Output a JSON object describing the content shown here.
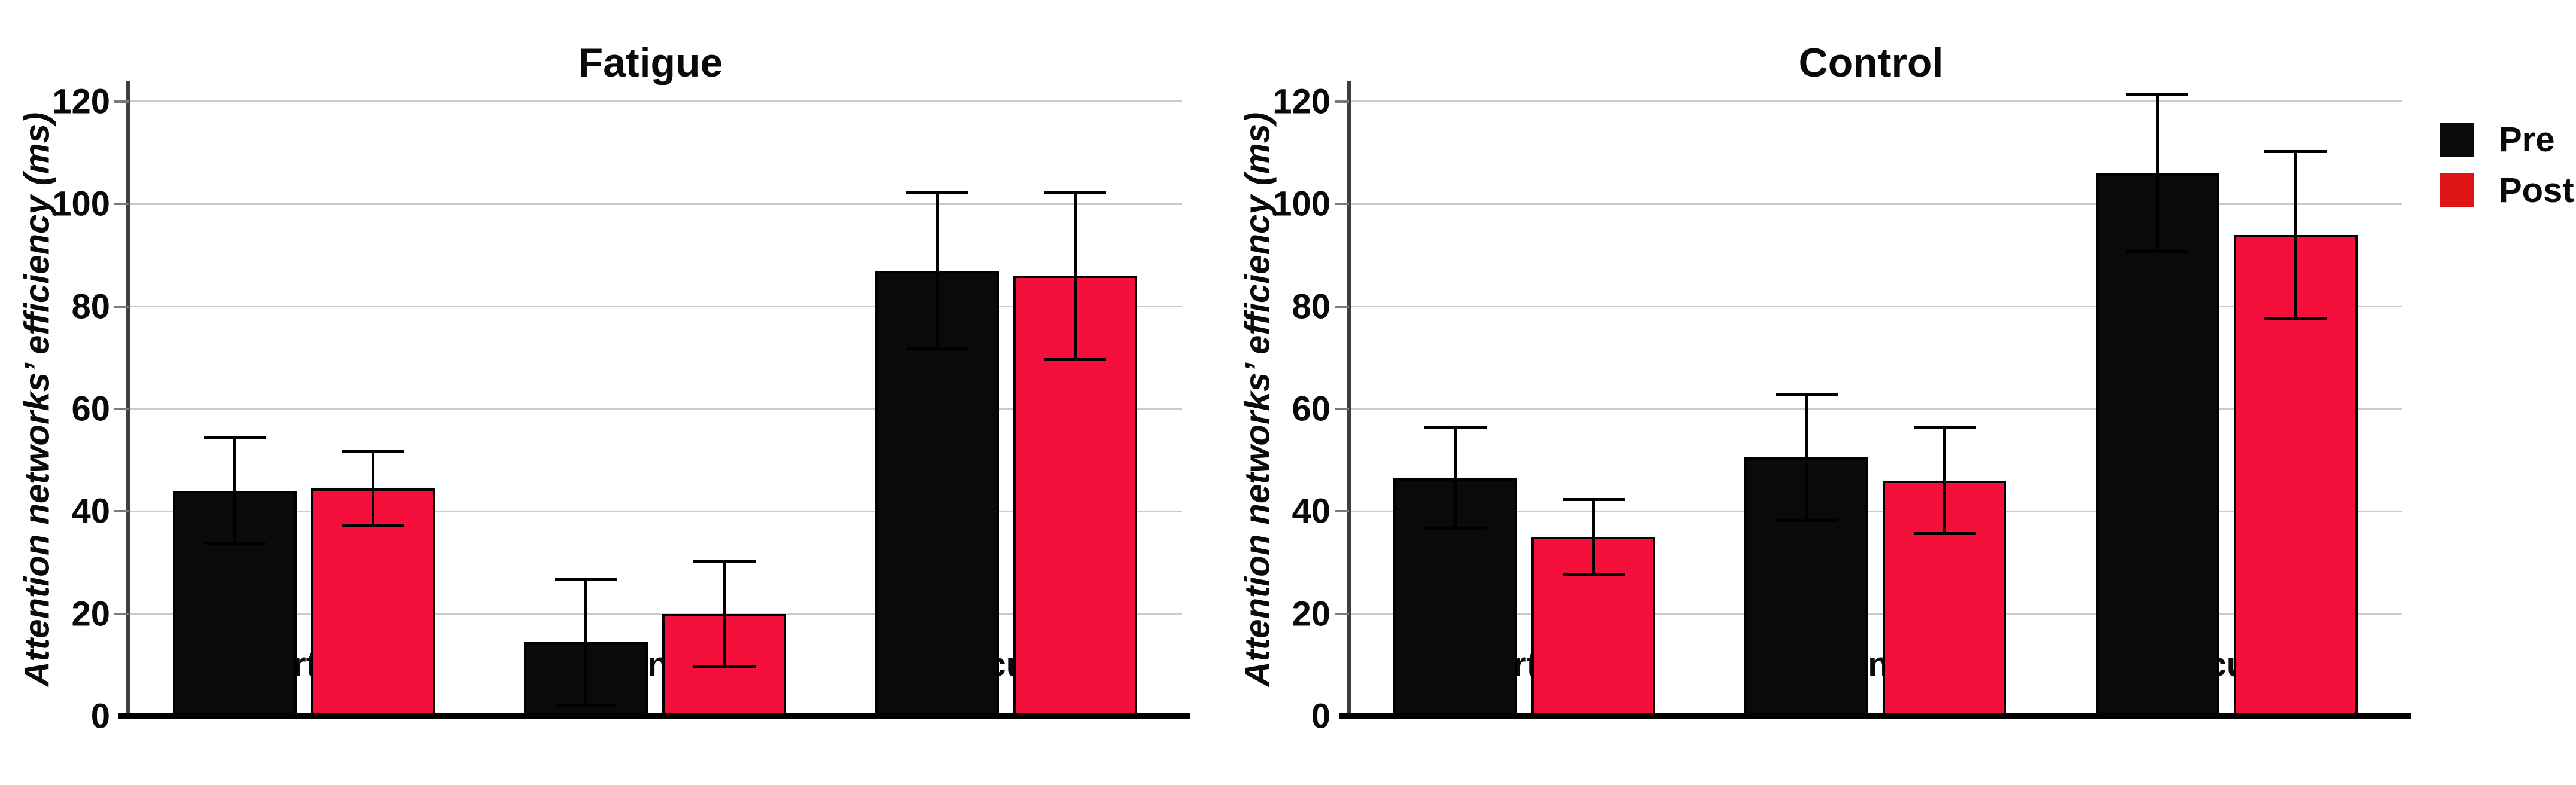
{
  "figure": {
    "background": "#ffffff",
    "grid_color": "#cbcbcb",
    "axis_color": "#3f3f3f",
    "error_bar_color": "#000000",
    "legend": {
      "items": [
        {
          "label": "Pre",
          "color": "#0a0a0a"
        },
        {
          "label": "Post",
          "color": "#dc1414"
        }
      ]
    }
  },
  "chart_data": [
    {
      "type": "bar",
      "title": "Fatigue",
      "xlabel": "",
      "ylabel": "Attention networks’ efficiency (ms)",
      "categories": [
        "Alerting",
        "Orienting",
        "Executive"
      ],
      "yticks": [
        0,
        20,
        40,
        60,
        80,
        100,
        120
      ],
      "ylim": [
        0,
        123.5
      ],
      "grid": true,
      "legend_position": "outside-right",
      "series": [
        {
          "name": "Pre",
          "color": "#0a0a0a",
          "values": [
            44,
            14.5,
            87
          ],
          "errors": [
            10,
            12,
            15
          ]
        },
        {
          "name": "Post",
          "color": "#f5103c",
          "values": [
            44.5,
            20,
            86
          ],
          "errors": [
            7,
            10,
            16
          ]
        }
      ]
    },
    {
      "type": "bar",
      "title": "Control",
      "xlabel": "",
      "ylabel": "Attention networks’ efficiency (ms)",
      "categories": [
        "Alerting",
        "Orienting",
        "Executive"
      ],
      "yticks": [
        0,
        20,
        40,
        60,
        80,
        100,
        120
      ],
      "ylim": [
        0,
        123.5
      ],
      "grid": true,
      "legend_position": "outside-right",
      "series": [
        {
          "name": "Pre",
          "color": "#0a0a0a",
          "values": [
            46.5,
            50.5,
            106
          ],
          "errors": [
            9.5,
            12,
            15
          ]
        },
        {
          "name": "Post",
          "color": "#f5103c",
          "values": [
            35,
            46,
            94
          ],
          "errors": [
            7,
            10,
            16
          ]
        }
      ]
    }
  ]
}
